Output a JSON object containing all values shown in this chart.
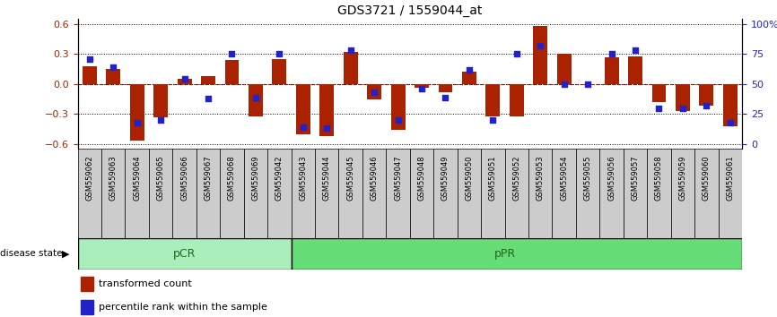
{
  "title": "GDS3721 / 1559044_at",
  "samples": [
    "GSM559062",
    "GSM559063",
    "GSM559064",
    "GSM559065",
    "GSM559066",
    "GSM559067",
    "GSM559068",
    "GSM559069",
    "GSM559042",
    "GSM559043",
    "GSM559044",
    "GSM559045",
    "GSM559046",
    "GSM559047",
    "GSM559048",
    "GSM559049",
    "GSM559050",
    "GSM559051",
    "GSM559052",
    "GSM559053",
    "GSM559054",
    "GSM559055",
    "GSM559056",
    "GSM559057",
    "GSM559058",
    "GSM559059",
    "GSM559060",
    "GSM559061"
  ],
  "transformed_count": [
    0.18,
    0.15,
    -0.57,
    -0.33,
    0.05,
    0.08,
    0.24,
    -0.32,
    0.25,
    -0.5,
    -0.52,
    0.32,
    -0.15,
    -0.46,
    -0.04,
    -0.08,
    0.12,
    -0.32,
    -0.32,
    0.58,
    0.3,
    -0.01,
    0.27,
    0.28,
    -0.18,
    -0.27,
    -0.22,
    -0.42
  ],
  "percentile_rank": [
    71,
    64,
    18,
    20,
    54,
    38,
    75,
    39,
    75,
    14,
    13,
    78,
    43,
    20,
    46,
    39,
    62,
    20,
    75,
    82,
    50,
    50,
    75,
    78,
    30,
    30,
    32,
    18
  ],
  "pCR_count": 9,
  "pPR_count": 19,
  "bar_color": "#aa2200",
  "dot_color": "#2222cc",
  "ylim": [
    -0.65,
    0.65
  ],
  "yticks_left": [
    -0.6,
    -0.3,
    0.0,
    0.3,
    0.6
  ],
  "yticks_right": [
    0,
    25,
    50,
    75,
    100
  ],
  "pcr_color": "#aaeebb",
  "ppr_color": "#66dd77",
  "group_label_color": "#226622",
  "xtick_bg": "#cccccc",
  "bar_width": 0.6,
  "dot_size": 20,
  "figsize": [
    8.66,
    3.54
  ],
  "dpi": 100
}
